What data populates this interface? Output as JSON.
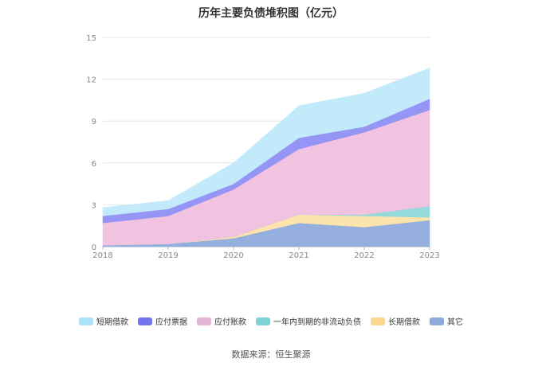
{
  "chart_data": {
    "type": "area",
    "stacked": true,
    "title": "历年主要负债堆积图（亿元）",
    "x": [
      "2018",
      "2019",
      "2020",
      "2021",
      "2022",
      "2023"
    ],
    "ylim": [
      0,
      15
    ],
    "yticks": [
      0,
      3,
      6,
      9,
      12,
      15
    ],
    "grid": true,
    "legend_position": "bottom",
    "series": [
      {
        "name": "其它",
        "color": "#8eaadc",
        "values": [
          0.1,
          0.2,
          0.6,
          1.7,
          1.4,
          1.9
        ]
      },
      {
        "name": "长期借款",
        "color": "#fde1a8",
        "values": [
          0.0,
          0.0,
          0.1,
          0.6,
          0.8,
          0.2
        ]
      },
      {
        "name": "一年内到期的非流动负债",
        "color": "#8ed8d8",
        "values": [
          0.0,
          0.0,
          0.0,
          0.0,
          0.1,
          0.8
        ]
      },
      {
        "name": "应付账款",
        "color": "#f0c0de",
        "values": [
          1.6,
          2.0,
          3.4,
          4.7,
          5.9,
          6.9
        ]
      },
      {
        "name": "应付票据",
        "color": "#8f8ff5",
        "values": [
          0.5,
          0.5,
          0.4,
          0.8,
          0.4,
          0.8
        ]
      },
      {
        "name": "短期借款",
        "color": "#bfe9fb",
        "values": [
          0.6,
          0.6,
          1.5,
          2.3,
          2.4,
          2.2
        ]
      }
    ],
    "legend_order": [
      "短期借款",
      "应付票据",
      "应付账款",
      "一年内到期的非流动负债",
      "长期借款",
      "其它"
    ],
    "legend_colors": {
      "短期借款": "#a9e2fa",
      "应付票据": "#7373f0",
      "应付账款": "#e6b4d7",
      "一年内到期的非流动负债": "#7dd3d3",
      "长期借款": "#fcd58f",
      "其它": "#8eaadc"
    }
  },
  "source": "数据来源：恒生聚源"
}
